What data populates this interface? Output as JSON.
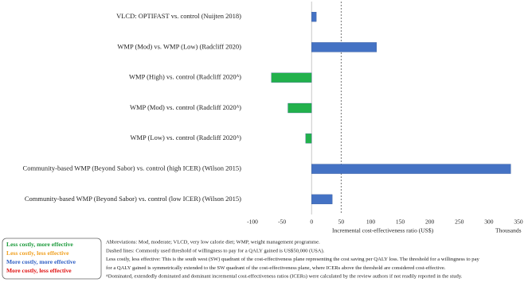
{
  "chart_data": {
    "type": "hbar",
    "categories": [
      "VLCD: OPTIFAST vs. control (Nuijten 2018)",
      "WMP (Mod)  vs. WMP (Low)  (Radcliff 2020)",
      "WMP (High) vs. control (Radcliff 2020ᴬ)",
      "WMP (Mod) vs. control (Radcliff 2020ᴬ)",
      "WMP (Low) vs. control (Radcliff 2020ᴬ)",
      "Community-based WMP (Beyond Sabor)  vs. control (high ICER) (Wilson 2015)",
      "Community-based WMP (Beyond Sabor)  vs. control (low ICER) (Wilson 2015)"
    ],
    "values": [
      8,
      110,
      -68,
      -40,
      -10,
      337,
      35
    ],
    "colors": [
      "#4472c4",
      "#4472c4",
      "#22b14c",
      "#22b14c",
      "#22b14c",
      "#4472c4",
      "#4472c4"
    ],
    "xlim": [
      -100,
      350
    ],
    "xticks": [
      -100,
      -50,
      0,
      50,
      100,
      150,
      200,
      250,
      300,
      350
    ],
    "x_label": "Incremental  cost-effectiveness  ratio (US$)",
    "x_unit": "Thousands",
    "threshold": 50,
    "legend": [
      {
        "label": "Less costly, more effective",
        "color": "#1a9a3a"
      },
      {
        "label": "Less costly, less effective",
        "color": "#f0a020"
      },
      {
        "label": "More costly, more effective",
        "color": "#2f5fc4"
      },
      {
        "label": "More costly, less effective",
        "color": "#e01010"
      }
    ],
    "notes": [
      "Abbreviations: Mod, moderate; VLCD, very low calorie diet; WMP, weight management programme.",
      "Dashed lines: Commonly used threshold of willingness to pay for a QALY gained is US$50,000 (USA).",
      "Less costly, less effective: This is the south west (SW) quadrant of the cost-effectiveness plane representing the cost saving per QALY loss. The threshold for a willingness to pay",
      "for a QALY gained is symmetrically extended to the SW quadrant of the cost-effectiveness plane, where ICERs above the threshold are considered cost-effective.",
      "ᴬDominated, extendedly dominated and dominant incremental cost-effectiveness ratios (ICERs) were calculated by the review authors if not readily reported in the study."
    ]
  }
}
